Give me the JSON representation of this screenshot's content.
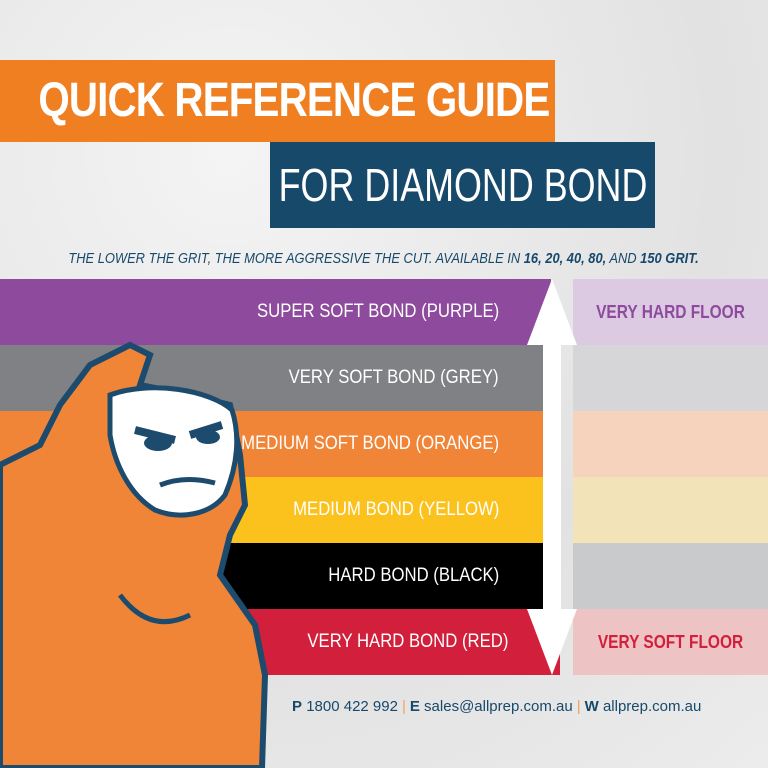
{
  "title": {
    "line1": "QUICK REFERENCE GUIDE",
    "line2": "FOR DIAMOND BOND"
  },
  "subtitle": {
    "text": "THE LOWER THE GRIT, THE MORE AGGRESSIVE THE CUT.  AVAILABLE IN ",
    "g1": "16, 20, 40, 80,",
    "and": " AND ",
    "g2": "150 GRIT."
  },
  "bonds": [
    {
      "label": "SUPER SOFT BOND (PURPLE)",
      "color": "#8e4a9c",
      "tint": "#dcc9e2"
    },
    {
      "label": "VERY SOFT BOND (GREY)",
      "color": "#808184",
      "tint": "#d6d6d8"
    },
    {
      "label": "MEDIUM SOFT BOND (ORANGE)",
      "color": "#f08538",
      "tint": "#f5d3bd"
    },
    {
      "label": "MEDIUM BOND (YELLOW)",
      "color": "#fbc11c",
      "tint": "#f2e3b8"
    },
    {
      "label": "HARD BOND (BLACK)",
      "color": "#000000",
      "tint": "#c9cacc"
    },
    {
      "label": "VERY HARD BOND (RED)",
      "color": "#d11f3c",
      "tint": "#eec3c3"
    }
  ],
  "floor": {
    "top": "VERY HARD FLOOR",
    "top_color": "#8e4a9c",
    "bottom": "VERY SOFT FLOOR",
    "bottom_color": "#d11f3c"
  },
  "contact": {
    "p_label": "P",
    "phone": "1800 422 992",
    "e_label": "E",
    "email": "sales@allprep.com.au",
    "w_label": "W",
    "web": "allprep.com.au"
  },
  "mascot_icon": "gorilla-mascot"
}
